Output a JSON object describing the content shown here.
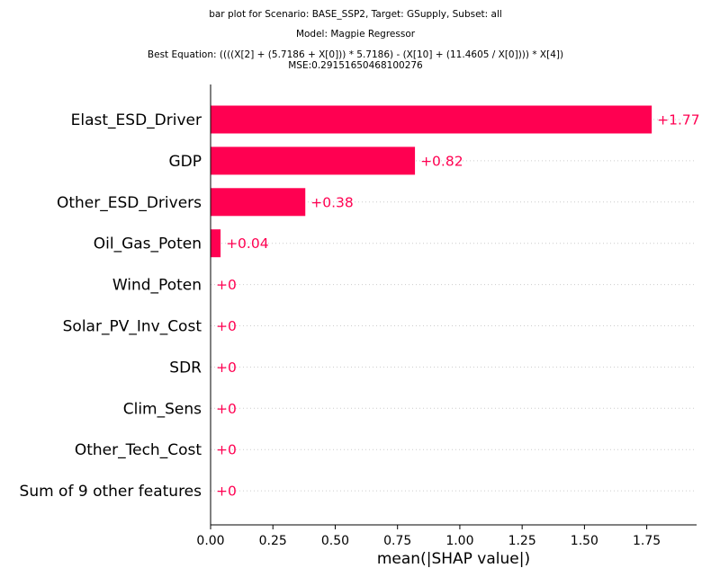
{
  "titles": [
    "bar plot for Scenario: BASE_SSP2, Target: GSupply, Subset: all",
    "Model: Magpie Regressor",
    "Best Equation: ((((X[2] + (5.7186 + X[0])) * 5.7186) - (X[10] + (11.4605 / X[0]))) * X[4])",
    "MSE:0.29151650468100276"
  ],
  "chart_data": {
    "type": "bar",
    "orientation": "horizontal",
    "categories": [
      "Elast_ESD_Driver",
      "GDP",
      "Other_ESD_Drivers",
      "Oil_Gas_Poten",
      "Wind_Poten",
      "Solar_PV_Inv_Cost",
      "SDR",
      "Clim_Sens",
      "Other_Tech_Cost",
      "Sum of 9 other features"
    ],
    "values": [
      1.77,
      0.82,
      0.38,
      0.04,
      0,
      0,
      0,
      0,
      0,
      0
    ],
    "value_labels": [
      "+1.77",
      "+0.82",
      "+0.38",
      "+0.04",
      "+0",
      "+0",
      "+0",
      "+0",
      "+0",
      "+0"
    ],
    "xlabel": "mean(|SHAP value|)",
    "xlim": [
      0,
      1.95
    ],
    "xticks": [
      0.0,
      0.25,
      0.5,
      0.75,
      1.0,
      1.25,
      1.5,
      1.75
    ],
    "xtick_labels": [
      "0.00",
      "0.25",
      "0.50",
      "0.75",
      "1.00",
      "1.25",
      "1.50",
      "1.75"
    ],
    "bar_color": "#ff0051",
    "grid": "dotted horizontal lines per row"
  }
}
